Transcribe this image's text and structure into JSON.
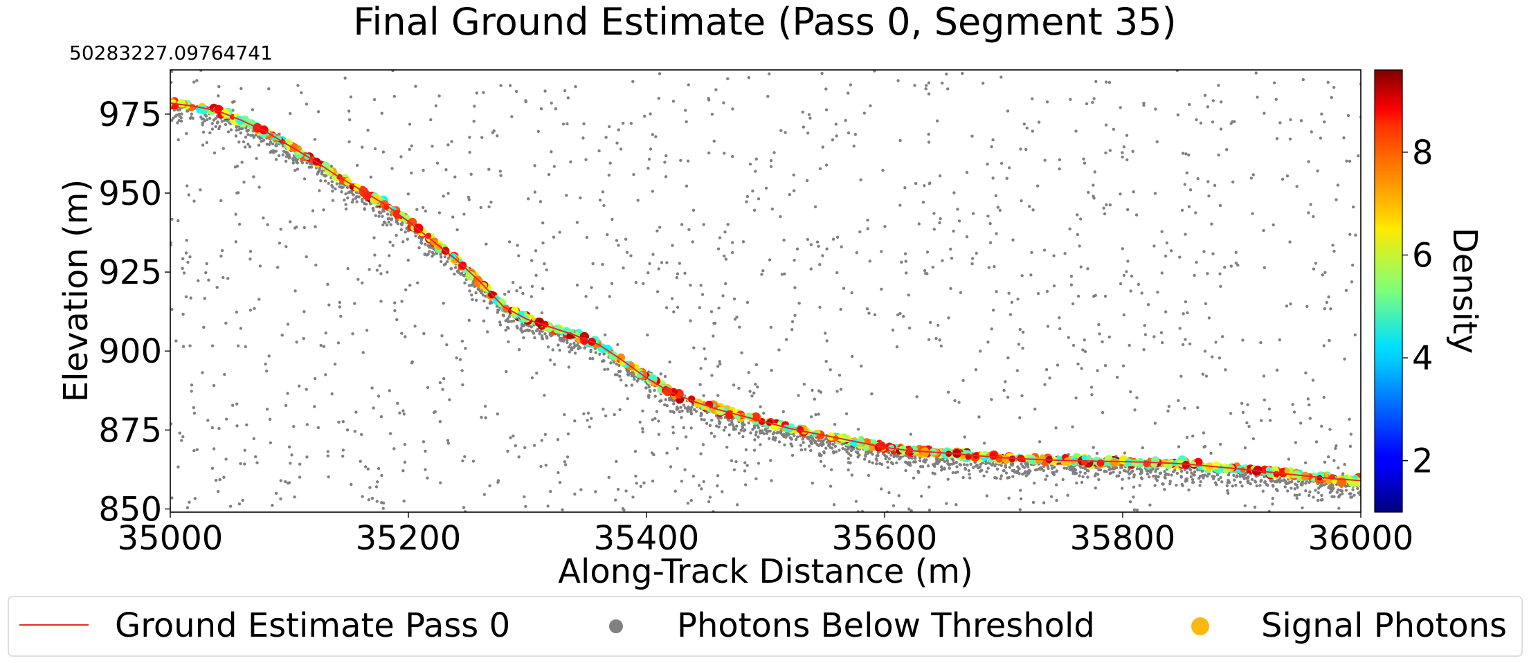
{
  "chart_data": {
    "type": "scatter",
    "title": "Final Ground Estimate (Pass 0, Segment 35)",
    "offset_label": "50283227.09764741",
    "xlabel": "Along-Track Distance (m)",
    "ylabel": "Elevation (m)",
    "xlim": [
      35000,
      36000
    ],
    "ylim": [
      849,
      989
    ],
    "x_ticks": [
      35000,
      35200,
      35400,
      35600,
      35800,
      36000
    ],
    "y_ticks": [
      850,
      875,
      900,
      925,
      950,
      975
    ],
    "grid": false,
    "legend_placement": "bottom",
    "colorbar": {
      "label": "Density",
      "range": [
        1,
        9.6
      ],
      "ticks": [
        2,
        4,
        6,
        8
      ],
      "colormap": "jet"
    },
    "series": [
      {
        "name": "Ground Estimate Pass 0",
        "kind": "line",
        "color": "#e8272a",
        "x": [
          35000,
          35020,
          35040,
          35060,
          35080,
          35100,
          35120,
          35140,
          35160,
          35180,
          35200,
          35220,
          35240,
          35260,
          35280,
          35300,
          35320,
          35340,
          35360,
          35380,
          35400,
          35420,
          35440,
          35460,
          35480,
          35500,
          35520,
          35540,
          35560,
          35580,
          35600,
          35620,
          35640,
          35660,
          35680,
          35700,
          35720,
          35740,
          35760,
          35780,
          35800,
          35820,
          35840,
          35860,
          35880,
          35900,
          35920,
          35940,
          35960,
          35980,
          36000
        ],
        "y": [
          978.5,
          977.5,
          976.0,
          973.0,
          969.5,
          965.0,
          960.5,
          955.5,
          951.0,
          946.5,
          941.0,
          935.0,
          929.0,
          922.0,
          914.0,
          910.0,
          907.5,
          905.0,
          902.0,
          897.0,
          891.5,
          887.0,
          884.0,
          881.5,
          879.5,
          877.5,
          875.5,
          874.0,
          872.5,
          871.0,
          869.5,
          868.5,
          868.0,
          867.5,
          866.8,
          866.2,
          865.8,
          865.5,
          865.3,
          865.1,
          865.0,
          864.8,
          864.5,
          864.0,
          863.3,
          862.6,
          861.8,
          861.0,
          860.2,
          859.5,
          859.0
        ]
      },
      {
        "name": "Photons Below Threshold",
        "kind": "scatter",
        "color": "#808080"
      },
      {
        "name": "Signal Photons",
        "kind": "scatter",
        "color": "#fbb80f"
      }
    ]
  }
}
